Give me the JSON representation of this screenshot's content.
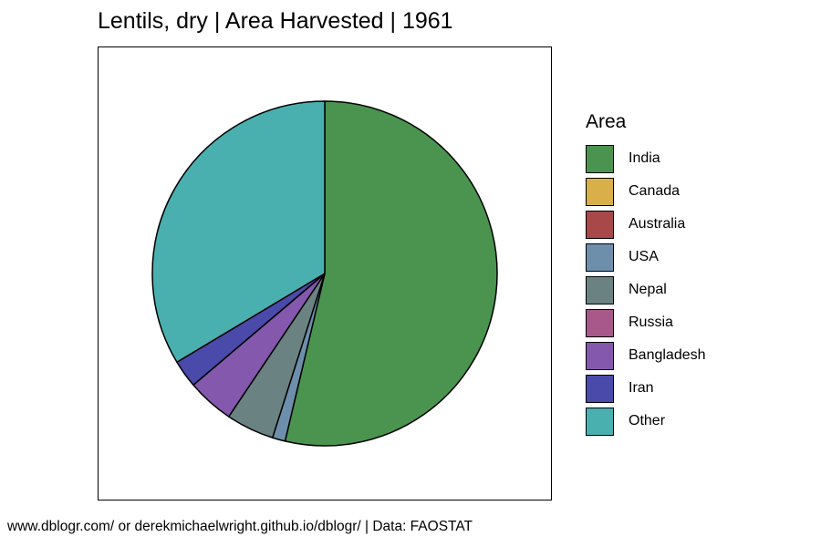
{
  "chart_data": {
    "type": "pie",
    "title": "Lentils, dry | Area Harvested | 1961",
    "legend_title": "Area",
    "legend_position": "right",
    "categories": [
      "India",
      "Canada",
      "Australia",
      "USA",
      "Nepal",
      "Russia",
      "Bangladesh",
      "Iran",
      "Other"
    ],
    "values": [
      53.7,
      0.0,
      0.0,
      1.2,
      4.5,
      0.0,
      4.4,
      2.6,
      33.6
    ],
    "unit": "percent of total",
    "colors": [
      "#4a944f",
      "#d9af4a",
      "#a84848",
      "#6d8fab",
      "#6b8282",
      "#a8588a",
      "#8458ad",
      "#4a4aaa",
      "#4aafaf"
    ]
  },
  "caption": "www.dblogr.com/ or derekmichaelwright.github.io/dblogr/ | Data: FAOSTAT"
}
